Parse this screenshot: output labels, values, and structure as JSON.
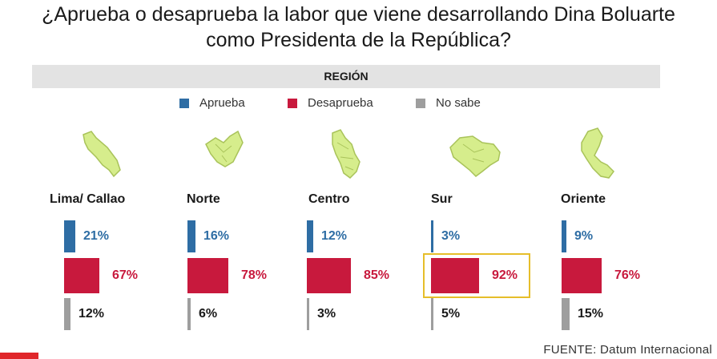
{
  "title_line1": "¿Aprueba o desaprueba la labor que viene desarrollando Dina Boluarte",
  "title_line2": "como Presidenta de la República?",
  "region_header": "REGIÓN",
  "legend": [
    {
      "label": "Aprueba",
      "color": "#2e6da4"
    },
    {
      "label": "Desaprueba",
      "color": "#c8193d"
    },
    {
      "label": "No sabe",
      "color": "#9e9e9e"
    }
  ],
  "source": "FUENTE: Datum Internacional",
  "highlight_color": "#e6be2a",
  "chart_data": {
    "type": "bar",
    "categories": [
      "Lima/ Callao",
      "Norte",
      "Centro",
      "Sur",
      "Oriente"
    ],
    "series": [
      {
        "name": "Aprueba",
        "color": "#2e6da4",
        "values": [
          21,
          16,
          12,
          3,
          9
        ],
        "labels": [
          "21%",
          "16%",
          "12%",
          "3%",
          "9%"
        ]
      },
      {
        "name": "Desaprueba",
        "color": "#c8193d",
        "values": [
          67,
          78,
          85,
          92,
          76
        ],
        "labels": [
          "67%",
          "78%",
          "85%",
          "92%",
          "76%"
        ]
      },
      {
        "name": "No sabe",
        "color": "#9e9e9e",
        "values": [
          12,
          6,
          3,
          5,
          15
        ],
        "labels": [
          "12%",
          "6%",
          "3%",
          "5%",
          "15%"
        ]
      }
    ],
    "highlighted_category": "Sur",
    "highlighted_series": "Desaprueba"
  }
}
